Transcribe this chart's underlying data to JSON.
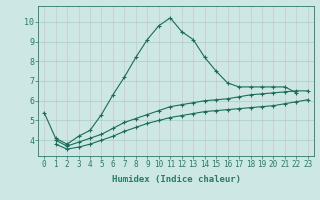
{
  "xlabel": "Humidex (Indice chaleur)",
  "bg_color": "#cde8e4",
  "grid_color": "#aaccca",
  "line_color": "#1a6b5a",
  "axis_color": "#2a7a6a",
  "xlim": [
    -0.5,
    23.5
  ],
  "ylim": [
    3.2,
    10.8
  ],
  "yticks": [
    4,
    5,
    6,
    7,
    8,
    9,
    10
  ],
  "xticks": [
    0,
    1,
    2,
    3,
    4,
    5,
    6,
    7,
    8,
    9,
    10,
    11,
    12,
    13,
    14,
    15,
    16,
    17,
    18,
    19,
    20,
    21,
    22,
    23
  ],
  "line1_x": [
    0,
    1,
    2,
    3,
    4,
    5,
    6,
    7,
    8,
    9,
    10,
    11,
    12,
    13,
    14,
    15,
    16,
    17,
    18,
    19,
    20,
    21,
    22
  ],
  "line1_y": [
    5.4,
    4.1,
    3.8,
    4.2,
    4.5,
    5.3,
    6.3,
    7.2,
    8.2,
    9.1,
    9.8,
    10.2,
    9.5,
    9.1,
    8.2,
    7.5,
    6.9,
    6.7,
    6.7,
    6.7,
    6.7,
    6.7,
    6.4
  ],
  "line2_x": [
    1,
    2,
    3,
    4,
    5,
    6,
    7,
    8,
    9,
    10,
    11,
    12,
    13,
    14,
    15,
    16,
    17,
    18,
    19,
    20,
    21,
    22,
    23
  ],
  "line2_y": [
    4.0,
    3.7,
    3.9,
    4.1,
    4.3,
    4.6,
    4.9,
    5.1,
    5.3,
    5.5,
    5.7,
    5.8,
    5.9,
    6.0,
    6.05,
    6.1,
    6.2,
    6.3,
    6.35,
    6.4,
    6.45,
    6.5,
    6.5
  ],
  "line3_x": [
    1,
    2,
    3,
    4,
    5,
    6,
    7,
    8,
    9,
    10,
    11,
    12,
    13,
    14,
    15,
    16,
    17,
    18,
    19,
    20,
    21,
    22,
    23
  ],
  "line3_y": [
    3.8,
    3.55,
    3.65,
    3.8,
    4.0,
    4.2,
    4.45,
    4.65,
    4.85,
    5.0,
    5.15,
    5.25,
    5.35,
    5.45,
    5.5,
    5.55,
    5.6,
    5.65,
    5.7,
    5.75,
    5.85,
    5.95,
    6.05
  ],
  "marker": "+",
  "markersize": 3.5,
  "markeredgewidth": 0.8,
  "linewidth": 0.8,
  "xlabel_fontsize": 6.5,
  "tick_fontsize": 5.5,
  "ytick_fontsize": 6.0
}
